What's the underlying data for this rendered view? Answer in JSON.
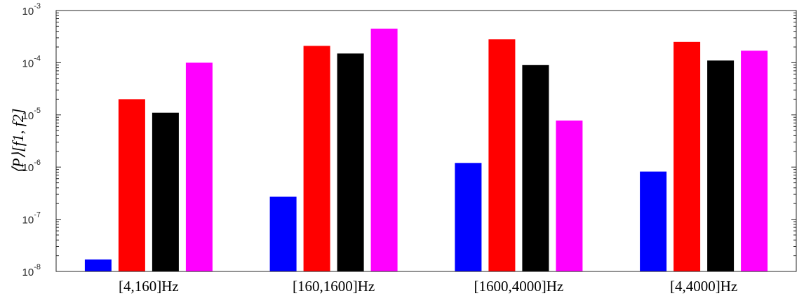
{
  "chart_data": {
    "type": "bar",
    "yscale": "log",
    "ylim": [
      1e-08,
      0.001
    ],
    "ylabel": "⟨P⟩[f1, f2]",
    "xlabel": "",
    "title": "",
    "grid": false,
    "legend": "none",
    "categories": [
      "[4,160]Hz",
      "[160,1600]Hz",
      "[1600,4000]Hz",
      "[4,4000]Hz"
    ],
    "y_tick_labels": [
      {
        "base": "10",
        "exp": "-8",
        "value": 1e-08
      },
      {
        "base": "10",
        "exp": "-7",
        "value": 1e-07
      },
      {
        "base": "10",
        "exp": "-6",
        "value": 1e-06
      },
      {
        "base": "10",
        "exp": "-5",
        "value": 1e-05
      },
      {
        "base": "10",
        "exp": "-4",
        "value": 0.0001
      },
      {
        "base": "10",
        "exp": "-3",
        "value": 0.001
      }
    ],
    "series": [
      {
        "color": "#0000ff",
        "values": [
          1.7e-08,
          2.7e-07,
          1.2e-06,
          8.2e-07
        ]
      },
      {
        "color": "#ff0000",
        "values": [
          2e-05,
          0.00021,
          0.00028,
          0.00025
        ]
      },
      {
        "color": "#000000",
        "values": [
          1.1e-05,
          0.00015,
          9e-05,
          0.00011
        ]
      },
      {
        "color": "#ff00ff",
        "values": [
          0.0001,
          0.00045,
          7.8e-06,
          0.00017
        ]
      }
    ]
  }
}
